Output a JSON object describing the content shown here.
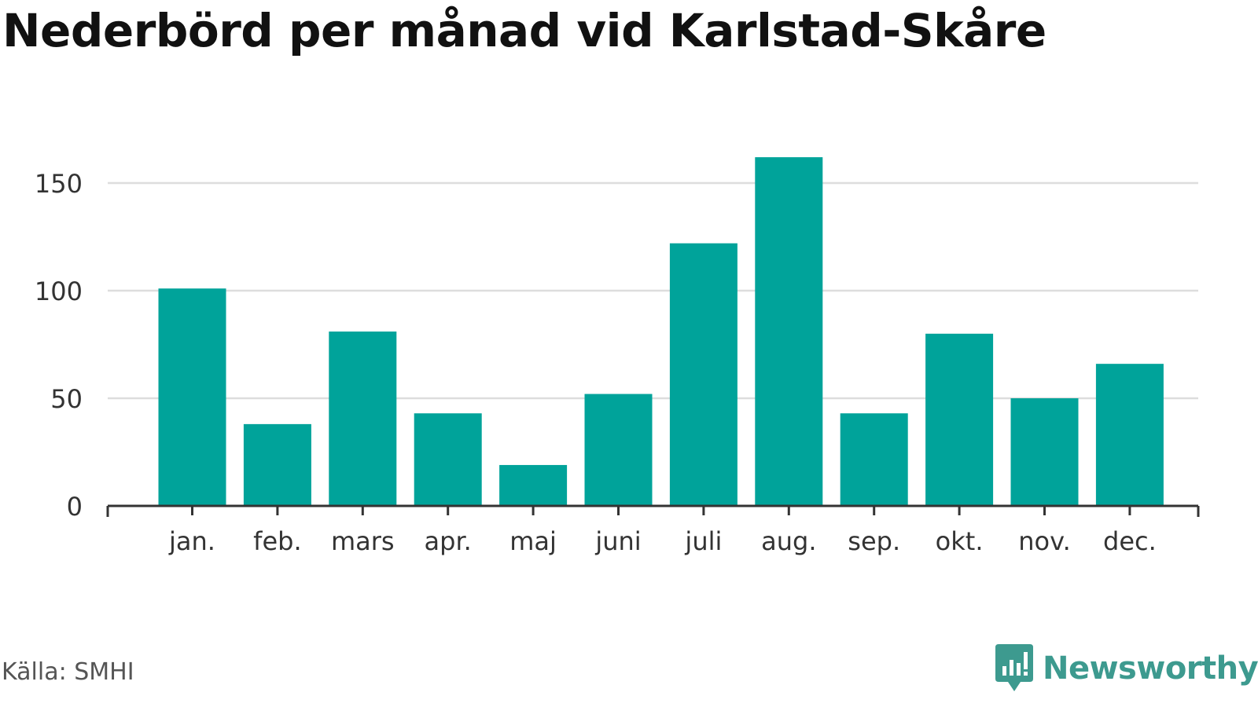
{
  "title": "Nederbörd per månad vid Karlstad-Skåre",
  "source": "Källa: SMHI",
  "brand": {
    "name": "Newsworthy",
    "icon": "newsworthy-logo-icon",
    "color": "#3d9a8f"
  },
  "chart_data": {
    "type": "bar",
    "categories": [
      "jan.",
      "feb.",
      "mars",
      "apr.",
      "maj",
      "juni",
      "juli",
      "aug.",
      "sep.",
      "okt.",
      "nov.",
      "dec."
    ],
    "values": [
      101,
      38,
      81,
      43,
      19,
      52,
      122,
      162,
      43,
      80,
      50,
      66
    ],
    "title": "Nederbörd per månad vid Karlstad-Skåre",
    "xlabel": "",
    "ylabel": "",
    "ylim": [
      0,
      170
    ],
    "yticks": [
      0,
      50,
      100,
      150
    ],
    "grid": true,
    "bar_color": "#00a39a",
    "grid_color": "#dddddd",
    "axis_color": "#333333"
  }
}
